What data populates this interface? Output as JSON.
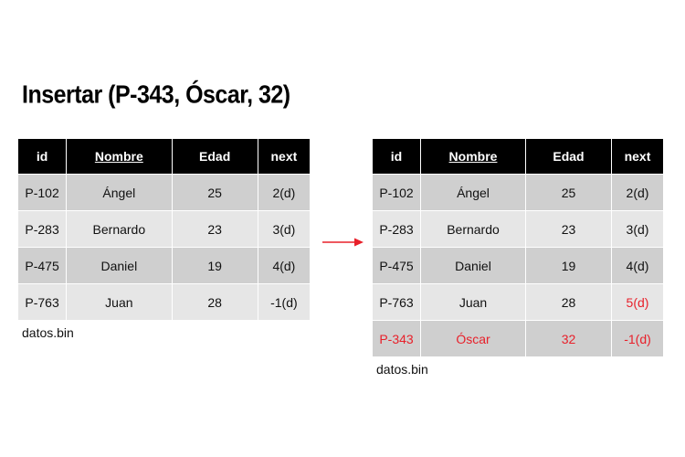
{
  "title": "Insertar (P-343, Óscar, 32)",
  "headers": {
    "id": "id",
    "nombre": "Nombre",
    "edad": "Edad",
    "next": "next"
  },
  "before": {
    "rows": [
      {
        "id": "P-102",
        "nombre": "Ángel",
        "edad": "25",
        "next": "2(d)"
      },
      {
        "id": "P-283",
        "nombre": "Bernardo",
        "edad": "23",
        "next": "3(d)"
      },
      {
        "id": "P-475",
        "nombre": "Daniel",
        "edad": "19",
        "next": "4(d)"
      },
      {
        "id": "P-763",
        "nombre": "Juan",
        "edad": "28",
        "next": "-1(d)"
      }
    ],
    "caption": "datos.bin"
  },
  "after": {
    "rows": [
      {
        "id": "P-102",
        "nombre": "Ángel",
        "edad": "25",
        "next": "2(d)"
      },
      {
        "id": "P-283",
        "nombre": "Bernardo",
        "edad": "23",
        "next": "3(d)"
      },
      {
        "id": "P-475",
        "nombre": "Daniel",
        "edad": "19",
        "next": "4(d)"
      },
      {
        "id": "P-763",
        "nombre": "Juan",
        "edad": "28",
        "next": "5(d)"
      },
      {
        "id": "P-343",
        "nombre": "Óscar",
        "edad": "32",
        "next": "-1(d)"
      }
    ],
    "caption": "datos.bin"
  },
  "colors": {
    "highlight": "#e8202a",
    "header_bg": "#000000",
    "row_dark": "#cfcfcf",
    "row_light": "#e6e6e6"
  },
  "arrow_icon": "arrow-right-icon"
}
